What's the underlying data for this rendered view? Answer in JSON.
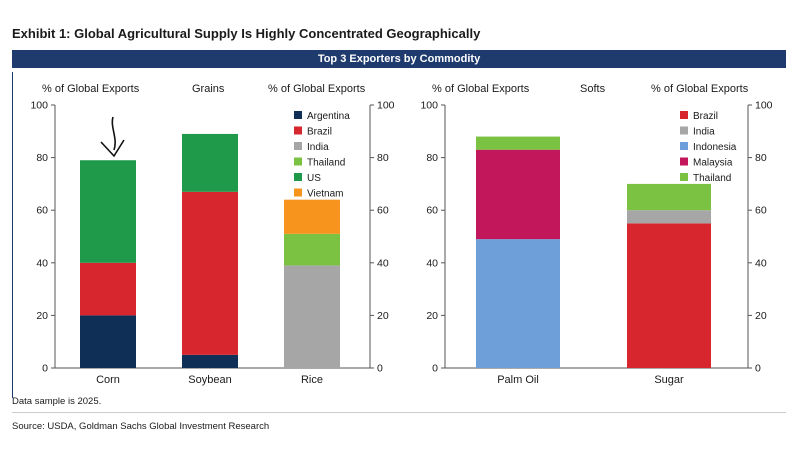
{
  "header": {
    "exhibit_title": "Exhibit 1: Global Agricultural Supply Is Highly Concentrated Geographically",
    "banner": "Top 3 Exporters by Commodity"
  },
  "grains_panel": {
    "left_axis_label": "% of Global Exports",
    "title": "Grains",
    "right_axis_label": "% of Global Exports"
  },
  "softs_panel": {
    "left_axis_label": "% of Global Exports",
    "title": "Softs",
    "right_axis_label": "% of Global Exports"
  },
  "footer": {
    "note": "Data sample is 2025.",
    "source": "Source: USDA, Goldman Sachs Global Investment Research"
  },
  "chart_data": [
    {
      "type": "bar",
      "stacked": true,
      "panel": "Grains",
      "categories": [
        "Corn",
        "Soybean",
        "Rice"
      ],
      "ylim": [
        0,
        100
      ],
      "yticks": [
        0,
        20,
        40,
        60,
        80,
        100
      ],
      "legend_position": "top-right",
      "series": [
        {
          "name": "Argentina",
          "color": "#0f2f57",
          "values": [
            20,
            5,
            0
          ]
        },
        {
          "name": "Brazil",
          "color": "#d7262e",
          "values": [
            20,
            62,
            0
          ]
        },
        {
          "name": "India",
          "color": "#a6a6a6",
          "values": [
            0,
            0,
            39
          ]
        },
        {
          "name": "Thailand",
          "color": "#7cc242",
          "values": [
            0,
            0,
            12
          ]
        },
        {
          "name": "US",
          "color": "#1f9a4a",
          "values": [
            39,
            22,
            0
          ]
        },
        {
          "name": "Vietnam",
          "color": "#f7941d",
          "values": [
            0,
            0,
            13
          ]
        }
      ],
      "annotation": "hand-drawn arrow pointing down at Corn bar"
    },
    {
      "type": "bar",
      "stacked": true,
      "panel": "Softs",
      "categories": [
        "Palm Oil",
        "Sugar"
      ],
      "ylim": [
        0,
        100
      ],
      "yticks": [
        0,
        20,
        40,
        60,
        80,
        100
      ],
      "legend_position": "top-right",
      "series": [
        {
          "name": "Brazil",
          "color": "#d7262e",
          "values": [
            0,
            55
          ]
        },
        {
          "name": "India",
          "color": "#a6a6a6",
          "values": [
            0,
            5
          ]
        },
        {
          "name": "Indonesia",
          "color": "#6f9fd8",
          "values": [
            49,
            0
          ]
        },
        {
          "name": "Malaysia",
          "color": "#c2185b",
          "values": [
            34,
            0
          ]
        },
        {
          "name": "Thailand",
          "color": "#7cc242",
          "values": [
            5,
            10
          ]
        }
      ]
    }
  ]
}
